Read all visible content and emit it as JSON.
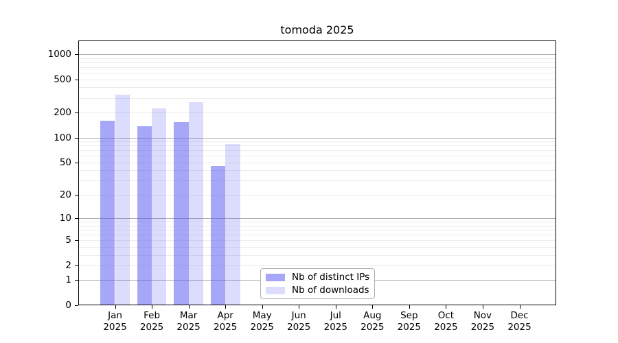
{
  "figure": {
    "background": "#ffffff"
  },
  "chart_data": {
    "type": "bar",
    "title": "tomoda 2025",
    "categories": [
      "Jan",
      "Feb",
      "Mar",
      "Apr",
      "May",
      "Jun",
      "Jul",
      "Aug",
      "Sep",
      "Oct",
      "Nov",
      "Dec"
    ],
    "x_year_label": "2025",
    "series": [
      {
        "name": "Nb of distinct IPs",
        "color": "rgba(80,80,240,0.5)",
        "values": [
          160,
          136,
          154,
          45,
          null,
          null,
          null,
          null,
          null,
          null,
          null,
          null
        ]
      },
      {
        "name": "Nb of downloads",
        "color": "rgba(80,80,240,0.2)",
        "values": [
          330,
          223,
          267,
          84,
          null,
          null,
          null,
          null,
          null,
          null,
          null,
          null
        ]
      }
    ],
    "y_ticks": [
      0,
      1,
      2,
      5,
      10,
      20,
      50,
      100,
      200,
      500,
      1000
    ],
    "y_scale": "log1p",
    "ylim": [
      0,
      1450
    ],
    "grid": "horizontal, major at powers of 10, light minors at 2-9 multiples",
    "legend_position": "lower center",
    "colors": {
      "axis": "#000000",
      "grid_major": "#b0b0b0",
      "grid_minor": "#ebebeb"
    }
  }
}
